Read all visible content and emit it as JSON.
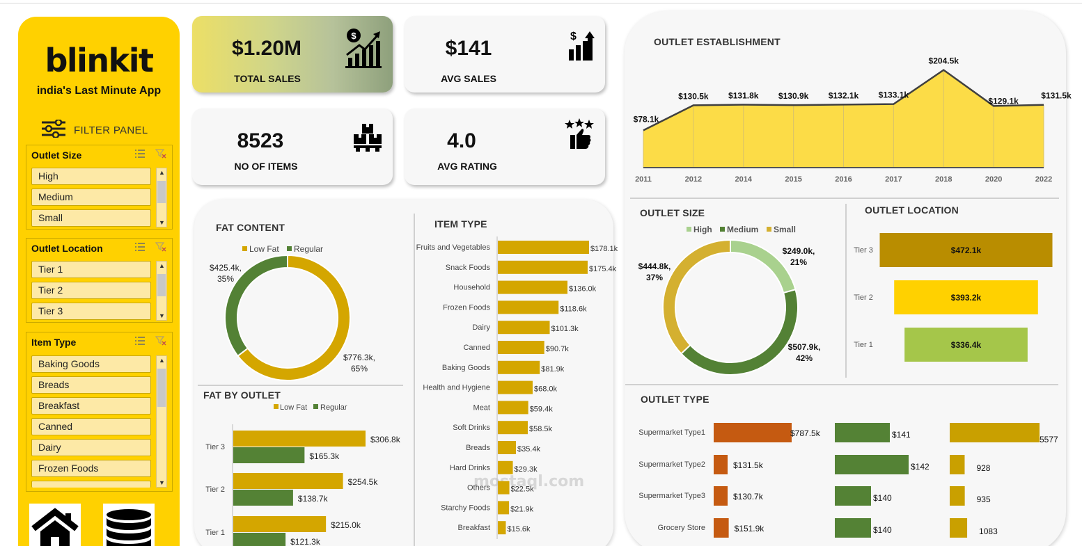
{
  "brand": {
    "logo": "blinkit",
    "tagline": "india's Last Minute App"
  },
  "filter_panel": {
    "title": "FILTER PANEL",
    "slicers": [
      {
        "title": "Outlet Size",
        "items": [
          "High",
          "Medium",
          "Small"
        ]
      },
      {
        "title": "Outlet Location",
        "items": [
          "Tier 1",
          "Tier 2",
          "Tier 3"
        ]
      },
      {
        "title": "Item Type",
        "items": [
          "Baking Goods",
          "Breads",
          "Breakfast",
          "Canned",
          "Dairy",
          "Frozen Foods"
        ]
      }
    ]
  },
  "kpis": {
    "total_sales": {
      "value": "$1.20M",
      "label": "TOTAL SALES"
    },
    "avg_sales": {
      "value": "$141",
      "label": "AVG SALES"
    },
    "items": {
      "value": "8523",
      "label": "NO OF ITEMS"
    },
    "rating": {
      "value": "4.0",
      "label": "AVG RATING"
    }
  },
  "colors": {
    "yellow": "#ffd100",
    "gold": "#d4a600",
    "dark_gold": "#b98d00",
    "green": "#538135",
    "light_green": "#a9d18e",
    "orange": "#c55a11",
    "lime": "#a5c64a"
  },
  "watermark": {
    "text": "mostaql.com"
  },
  "chart_data": [
    {
      "id": "outlet_establishment",
      "type": "area",
      "title": "OUTLET ESTABLISHMENT",
      "categories": [
        "2011",
        "2012",
        "2014",
        "2015",
        "2016",
        "2017",
        "2018",
        "2020",
        "2022"
      ],
      "values": [
        78.1,
        130.5,
        131.8,
        130.9,
        132.1,
        133.1,
        204.5,
        129.1,
        131.5
      ],
      "labels": [
        "$78.1k",
        "$130.5k",
        "$131.8k",
        "$130.9k",
        "$132.1k",
        "$133.1k",
        "$204.5k",
        "$129.1k",
        "$131.5k"
      ],
      "ylim": [
        0,
        220
      ]
    },
    {
      "id": "fat_content",
      "type": "pie",
      "title": "FAT CONTENT",
      "legend": [
        "Low Fat",
        "Regular"
      ],
      "values": [
        776.3,
        425.4
      ],
      "labels": [
        "$776.3k,",
        "$425.4k,"
      ],
      "percents": [
        "65%",
        "35%"
      ],
      "colors": [
        "#d4a600",
        "#538135"
      ]
    },
    {
      "id": "item_type",
      "type": "bar",
      "title": "ITEM TYPE",
      "categories": [
        "Fruits and Vegetables",
        "Snack Foods",
        "Household",
        "Frozen Foods",
        "Dairy",
        "Canned",
        "Baking Goods",
        "Health and Hygiene",
        "Meat",
        "Soft Drinks",
        "Breads",
        "Hard Drinks",
        "Others",
        "Starchy Foods",
        "Breakfast"
      ],
      "values": [
        178.1,
        175.4,
        136.0,
        118.6,
        101.3,
        90.7,
        81.9,
        68.0,
        59.4,
        58.5,
        35.4,
        29.3,
        22.5,
        21.9,
        15.6
      ],
      "labels": [
        "$178.1k",
        "$175.4k",
        "$136.0k",
        "$118.6k",
        "$101.3k",
        "$90.7k",
        "$81.9k",
        "$68.0k",
        "$59.4k",
        "$58.5k",
        "$35.4k",
        "$29.3k",
        "$22.5k",
        "$21.9k",
        "$15.6k"
      ]
    },
    {
      "id": "fat_by_outlet",
      "type": "bar",
      "title": "FAT BY OUTLET",
      "categories": [
        "Tier 3",
        "Tier 2",
        "Tier 1"
      ],
      "series": [
        {
          "name": "Low Fat",
          "values": [
            306.8,
            254.5,
            215.0
          ],
          "labels": [
            "$306.8k",
            "$254.5k",
            "$215.0k"
          ]
        },
        {
          "name": "Regular",
          "values": [
            165.3,
            138.7,
            121.3
          ],
          "labels": [
            "$165.3k",
            "$138.7k",
            "$121.3k"
          ]
        }
      ]
    },
    {
      "id": "outlet_size",
      "type": "pie",
      "title": "OUTLET SIZE",
      "legend": [
        "High",
        "Medium",
        "Small"
      ],
      "values": [
        249.0,
        507.9,
        444.8
      ],
      "labels": [
        "$249.0k,",
        "$507.9k,",
        "$444.8k,"
      ],
      "percents": [
        "21%",
        "42%",
        "37%"
      ],
      "colors": [
        "#a9d18e",
        "#538135",
        "#d4b030"
      ]
    },
    {
      "id": "outlet_location",
      "type": "bar",
      "title": "OUTLET LOCATION",
      "categories": [
        "Tier 3",
        "Tier 2",
        "Tier 1"
      ],
      "values": [
        472.1,
        393.2,
        336.4
      ],
      "labels": [
        "$472.1k",
        "$393.2k",
        "$336.4k"
      ]
    },
    {
      "id": "outlet_type",
      "type": "table",
      "title": "OUTLET TYPE",
      "categories": [
        "Supermarket Type1",
        "Supermarket Type2",
        "Supermarket Type3",
        "Grocery Store"
      ],
      "series": [
        {
          "values": [
            787.5,
            131.5,
            130.7,
            151.9
          ],
          "labels": [
            "$787.5k",
            "$131.5k",
            "$130.7k",
            "$151.9k"
          ]
        },
        {
          "values": [
            141,
            142,
            140,
            140
          ],
          "labels": [
            "$141",
            "$142",
            "$140",
            "$140"
          ]
        },
        {
          "values": [
            5577,
            928,
            935,
            1083
          ],
          "labels": [
            "5577",
            "928",
            "935",
            "1083"
          ]
        }
      ]
    }
  ]
}
